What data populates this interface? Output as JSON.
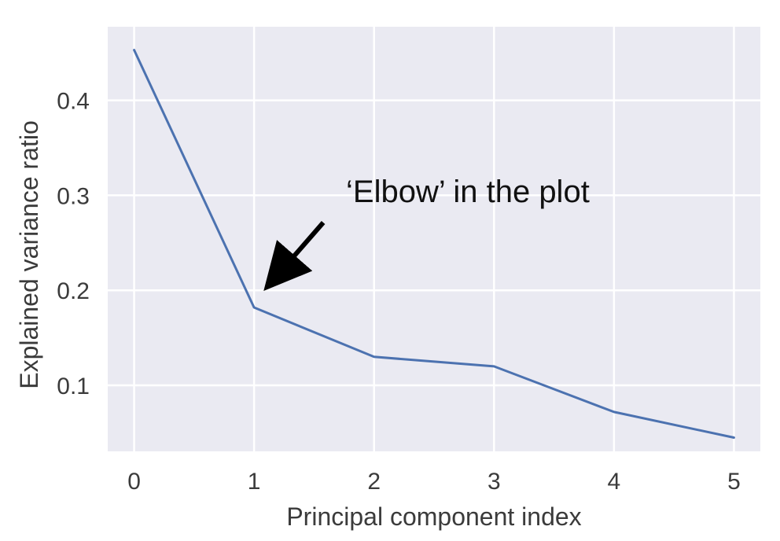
{
  "chart_data": {
    "type": "line",
    "title": "",
    "xlabel": "Principal component index",
    "ylabel": "Explained variance ratio",
    "xlim": [
      -0.22,
      5.22
    ],
    "ylim": [
      0.0305,
      0.4775
    ],
    "xticks": [
      0,
      1,
      2,
      3,
      4,
      5
    ],
    "yticks": [
      0.1,
      0.2,
      0.3,
      0.4
    ],
    "grid": true,
    "series": [
      {
        "x": [
          0,
          1,
          2,
          3,
          4,
          5
        ],
        "y": [
          0.453,
          0.182,
          0.13,
          0.12,
          0.072,
          0.045
        ]
      }
    ],
    "annotation": {
      "text": "‘Elbow’ in the plot",
      "x": 1,
      "y": 0.182
    },
    "colors": {
      "background": "#eaeaf2",
      "grid": "#ffffff",
      "line": "#4c72b0",
      "arrow": "#000000"
    }
  }
}
